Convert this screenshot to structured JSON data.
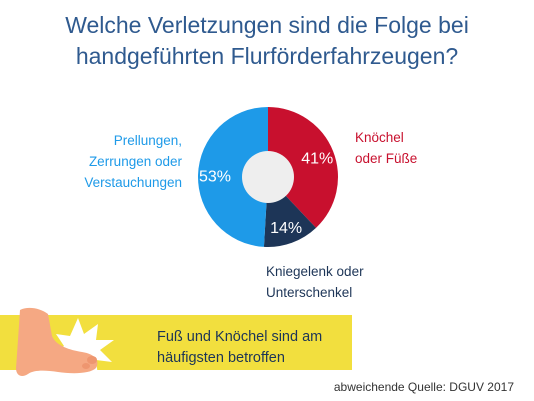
{
  "title": {
    "line1": "Welche Verletzungen sind die Folge bei",
    "line2": "handgeführten Flurförderfahrzeugen?"
  },
  "chart_data": {
    "type": "pie",
    "title": "Welche Verletzungen sind die Folge bei handgeführten Flurförderfahrzeugen?",
    "slices": [
      {
        "label": "Knöchel oder Füße",
        "label_lines": [
          "Knöchel",
          "oder Füße"
        ],
        "value": 41,
        "display": "41%",
        "color": "#c8102e"
      },
      {
        "label": "Kniegelenk oder Unterschenkel",
        "label_lines": [
          "Kniegelenk oder",
          "Unterschenkel"
        ],
        "value": 14,
        "display": "14%",
        "color": "#1d3557"
      },
      {
        "label": "Prellungen, Zerrungen oder Verstauchungen",
        "label_lines": [
          "Prellungen,",
          "Zerrungen oder",
          "Verstauchungen"
        ],
        "value": 53,
        "display": "53%",
        "color": "#1e9ae8"
      }
    ],
    "donut": true,
    "center_color": "#eeeeee"
  },
  "banner": {
    "line1": "Fuß und Knöchel sind am",
    "line2": "häufigsten betroffen",
    "color": "#f2df3e"
  },
  "source": "abweichende Quelle: DGUV 2017"
}
